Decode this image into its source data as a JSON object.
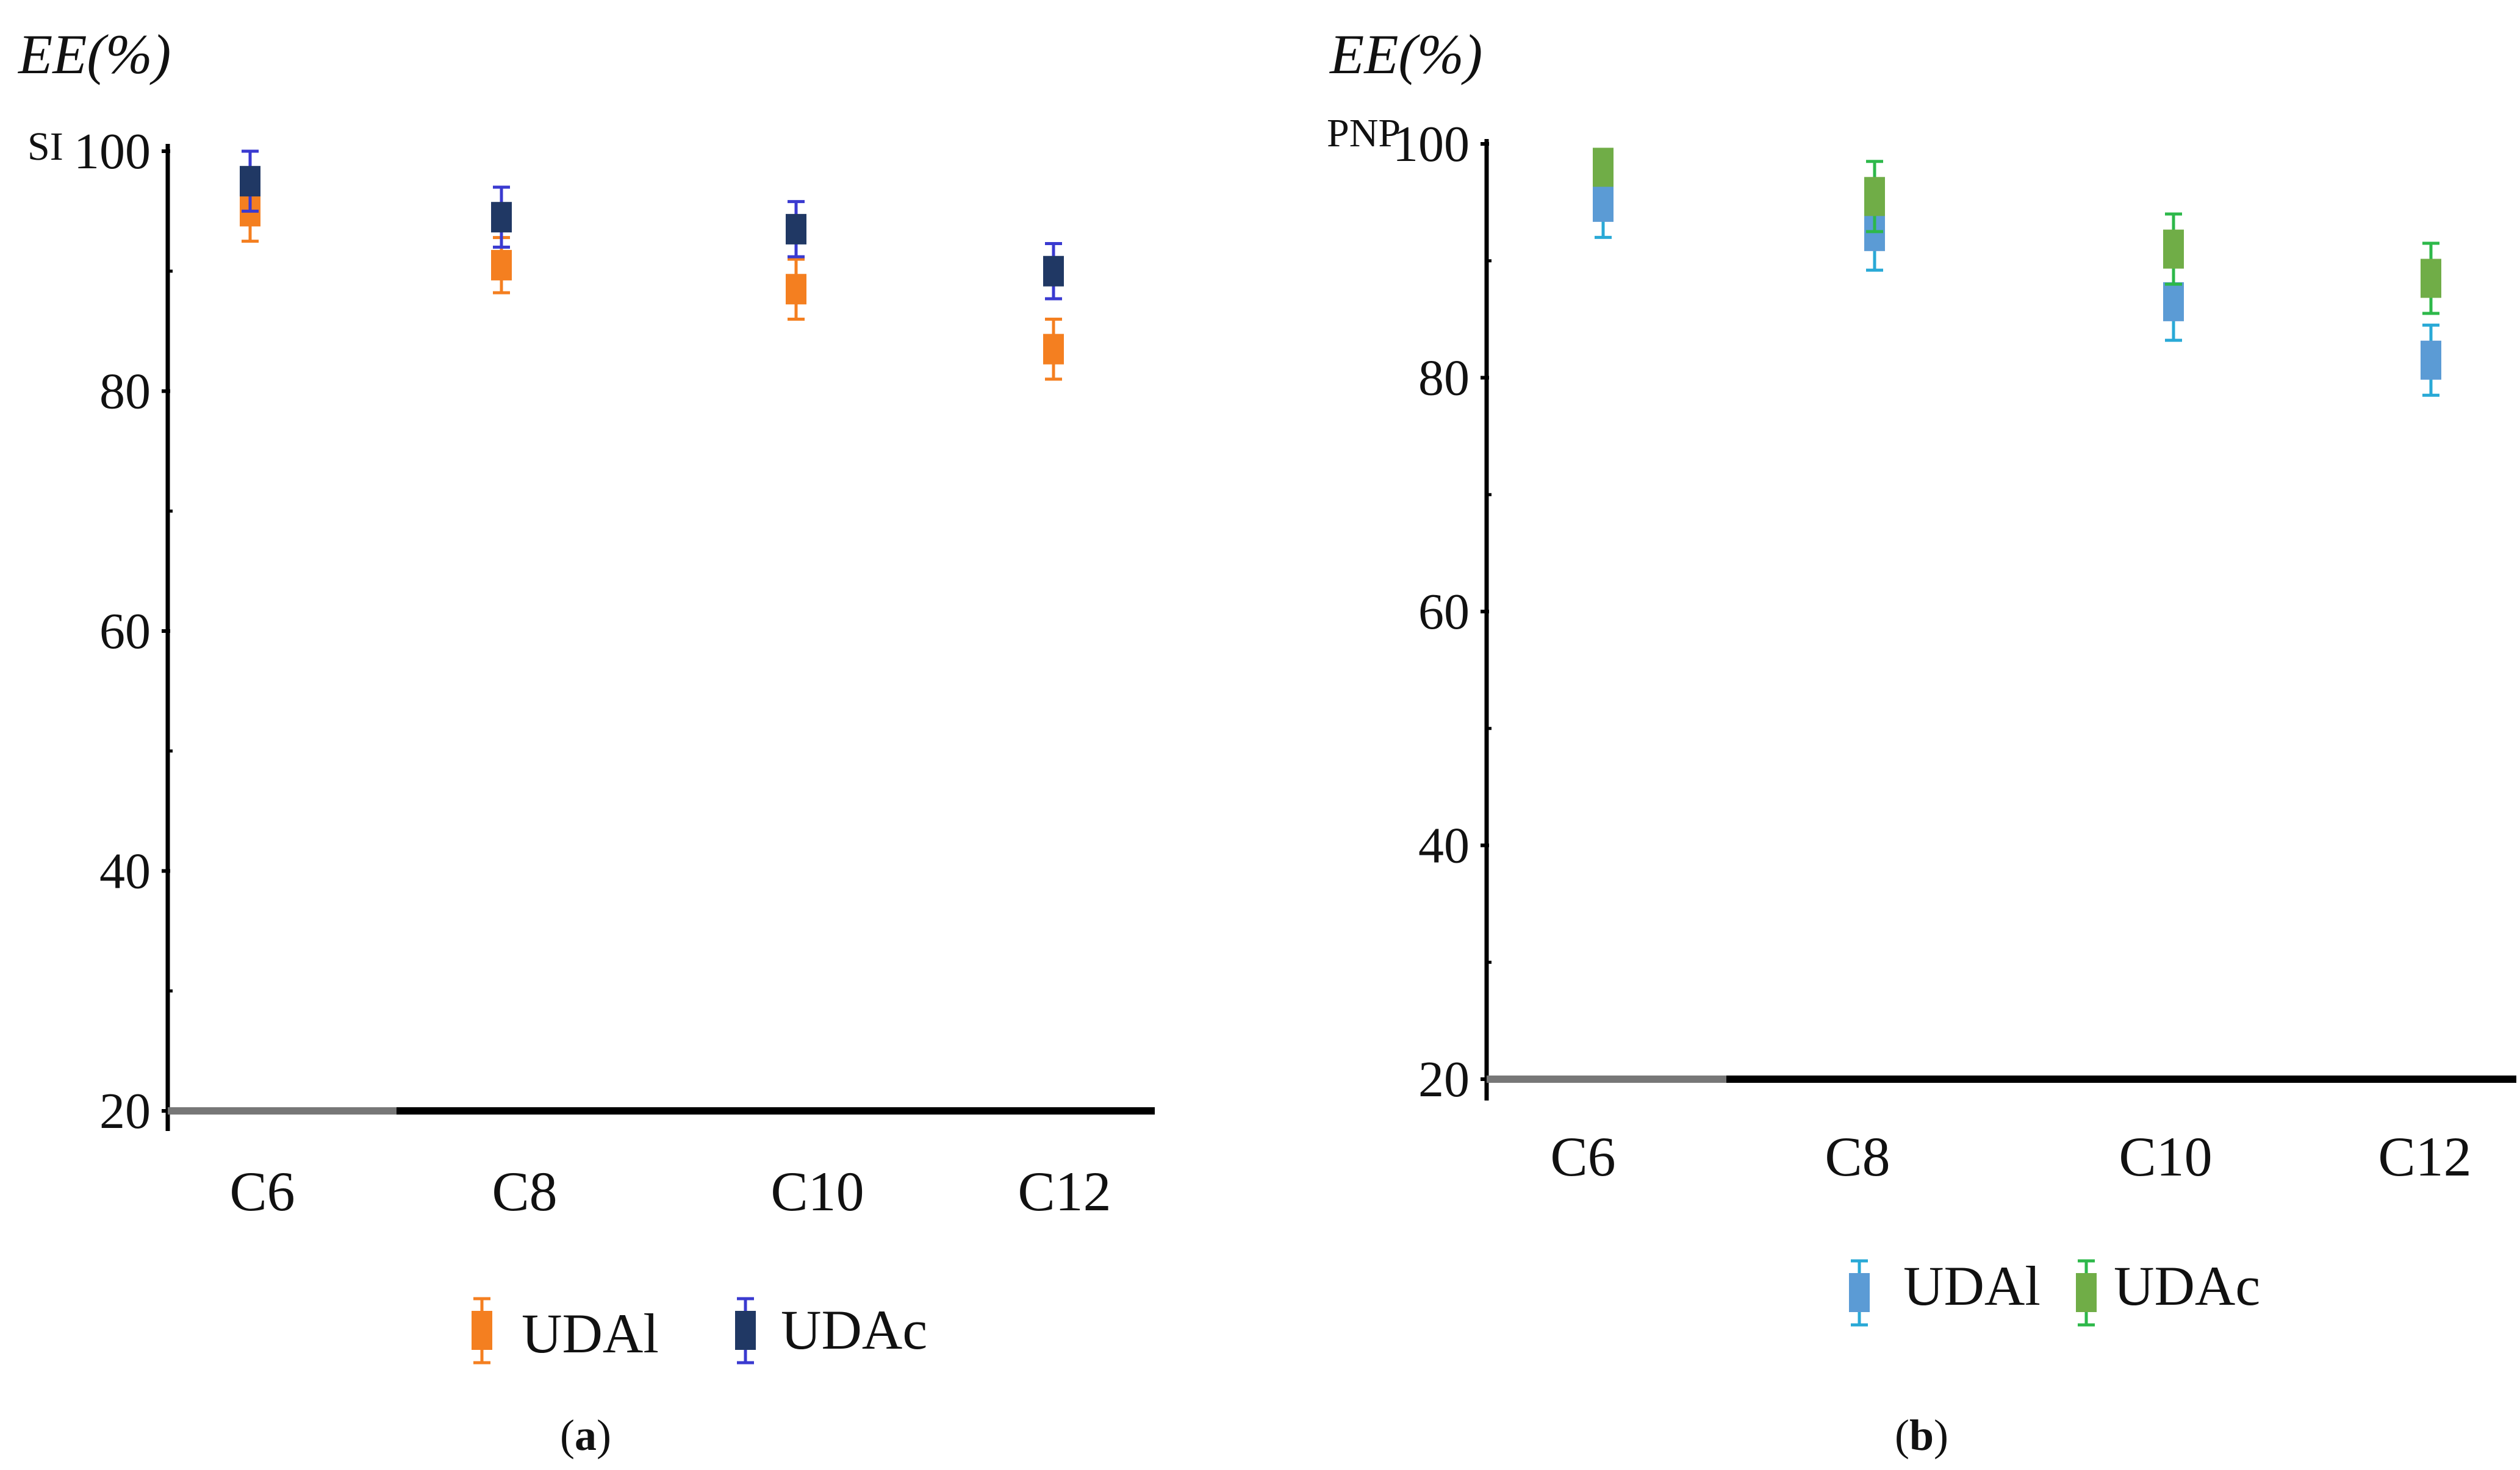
{
  "chart_data": [
    {
      "type": "scatter",
      "panel_label": "(a)",
      "ylabel": "EE(%)",
      "series_label": "SI",
      "categories": [
        "C6",
        "C8",
        "C10",
        "C12"
      ],
      "ylim": [
        20,
        100
      ],
      "yticks": [
        20,
        40,
        60,
        80,
        100
      ],
      "series": [
        {
          "name": "UDAl",
          "color": "#F47F20",
          "values": [
            95,
            90.5,
            88.5,
            83.5
          ],
          "errors": [
            2.5,
            2.3,
            2.5,
            2.5
          ]
        },
        {
          "name": "UDAc",
          "color": "#203864",
          "errorColor": "#3A3AD0",
          "values": [
            97.5,
            94.5,
            93.5,
            90
          ],
          "errors": [
            2.5,
            2.5,
            2.3,
            2.3
          ]
        }
      ]
    },
    {
      "type": "scatter",
      "panel_label": "(b)",
      "ylabel": "EE(%)",
      "series_label": "PNP",
      "categories": [
        "C6",
        "C8",
        "C10",
        "C12"
      ],
      "ylim": [
        20,
        100
      ],
      "yticks": [
        20,
        40,
        60,
        80,
        100
      ],
      "series": [
        {
          "name": "UDAl",
          "color": "#5B9BD5",
          "errorColor": "#29A9D6",
          "values": [
            95,
            92.5,
            86.5,
            81.5
          ],
          "errors": [
            3,
            3.3,
            3.3,
            3
          ]
        },
        {
          "name": "UDAc",
          "color": "#70AD47",
          "errorColor": "#2DB84A",
          "values": [
            98,
            95.5,
            91,
            88.5
          ],
          "errors": [
            1.5,
            3,
            3,
            3
          ]
        }
      ]
    }
  ]
}
